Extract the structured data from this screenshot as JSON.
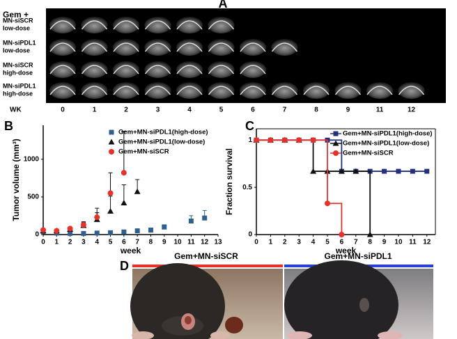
{
  "panel_a": {
    "label": "A",
    "prefix": "Gem +",
    "rows": [
      [
        "MN-siSCR",
        "low-dose"
      ],
      [
        "MN-siPDL1",
        "low-dose"
      ],
      [
        "MN-siSCR",
        "high-dose"
      ],
      [
        "MN-siPDL1",
        "high-dose"
      ]
    ],
    "wk_label": "WK",
    "weeks": [
      "0",
      "1",
      "2",
      "3",
      "4",
      "5",
      "6",
      "7",
      "8",
      "9",
      "11",
      "12"
    ]
  },
  "chart_data": [
    {
      "type": "scatter",
      "panel_label": "B",
      "y_label": "Tumor volume (mm³)",
      "x_label": "week",
      "xlim": [
        0,
        13
      ],
      "xticks": [
        0,
        1,
        2,
        3,
        4,
        5,
        6,
        7,
        8,
        9,
        10,
        11,
        12,
        13
      ],
      "ylim": [
        0,
        1450
      ],
      "yticks": [
        0,
        500,
        1000
      ],
      "legend": "upper right",
      "series": [
        {
          "name": "Gem+MN-siPDL1(high-dose)",
          "color": "#2f5f8e",
          "marker": "square",
          "x": [
            0,
            1,
            2,
            3,
            4,
            5,
            6,
            7,
            8,
            9,
            11,
            12
          ],
          "values": [
            40,
            20,
            15,
            15,
            20,
            25,
            35,
            50,
            60,
            100,
            180,
            220
          ],
          "errors": [
            30,
            10,
            5,
            5,
            5,
            5,
            5,
            10,
            10,
            30,
            70,
            100
          ]
        },
        {
          "name": "Gem+MN-siPDL1(low-dose)",
          "color": "#111111",
          "marker": "triangle",
          "x": [
            0,
            1,
            2,
            3,
            4,
            5,
            6,
            7
          ],
          "values": [
            50,
            50,
            70,
            120,
            200,
            310,
            420,
            570
          ],
          "errors": [
            20,
            20,
            20,
            40,
            150,
            200,
            240,
            160
          ]
        },
        {
          "name": "Gem+MN-siSCR",
          "color": "#e8312a",
          "marker": "circle",
          "x": [
            0,
            1,
            2,
            3,
            4,
            5,
            6
          ],
          "values": [
            60,
            50,
            80,
            130,
            230,
            550,
            820
          ],
          "errors": [
            20,
            20,
            20,
            40,
            60,
            270,
            550
          ]
        }
      ]
    },
    {
      "type": "line",
      "step": true,
      "frame": true,
      "panel_label": "C",
      "y_label": "Fraction survival",
      "x_label": "week",
      "xlim": [
        0,
        12.6
      ],
      "xticks": [
        0,
        1,
        2,
        3,
        4,
        5,
        6,
        7,
        8,
        9,
        10,
        11,
        12
      ],
      "ylim": [
        0,
        1.12
      ],
      "yticks": [
        0,
        0.5,
        1
      ],
      "legend": "upper right",
      "series": [
        {
          "name": "Gem+MN-siPDL1(high-dose)",
          "color": "#22307e",
          "marker": "square",
          "x": [
            0,
            1,
            2,
            3,
            4,
            5,
            6,
            7,
            8,
            9,
            10,
            11,
            12
          ],
          "values": [
            1,
            1,
            1,
            1,
            1,
            1,
            0.67,
            0.67,
            0.67,
            0.67,
            0.67,
            0.67,
            0.67
          ]
        },
        {
          "name": "Gem+MN-siPDL1(low-dose)",
          "color": "#111111",
          "marker": "triangle",
          "x": [
            0,
            1,
            2,
            3,
            4,
            5,
            6,
            7,
            8
          ],
          "values": [
            1,
            1,
            1,
            1,
            0.67,
            0.67,
            0.67,
            0.67,
            0
          ]
        },
        {
          "name": "Gem+MN-siSCR",
          "color": "#e8312a",
          "marker": "circle",
          "x": [
            0,
            1,
            2,
            3,
            4,
            5,
            6
          ],
          "values": [
            1,
            1,
            1,
            1,
            1,
            0.33,
            0
          ]
        }
      ]
    }
  ],
  "panel_d": {
    "label": "D",
    "left": "Gem+MN-siSCR",
    "right": "Gem+MN-siPDL1"
  }
}
